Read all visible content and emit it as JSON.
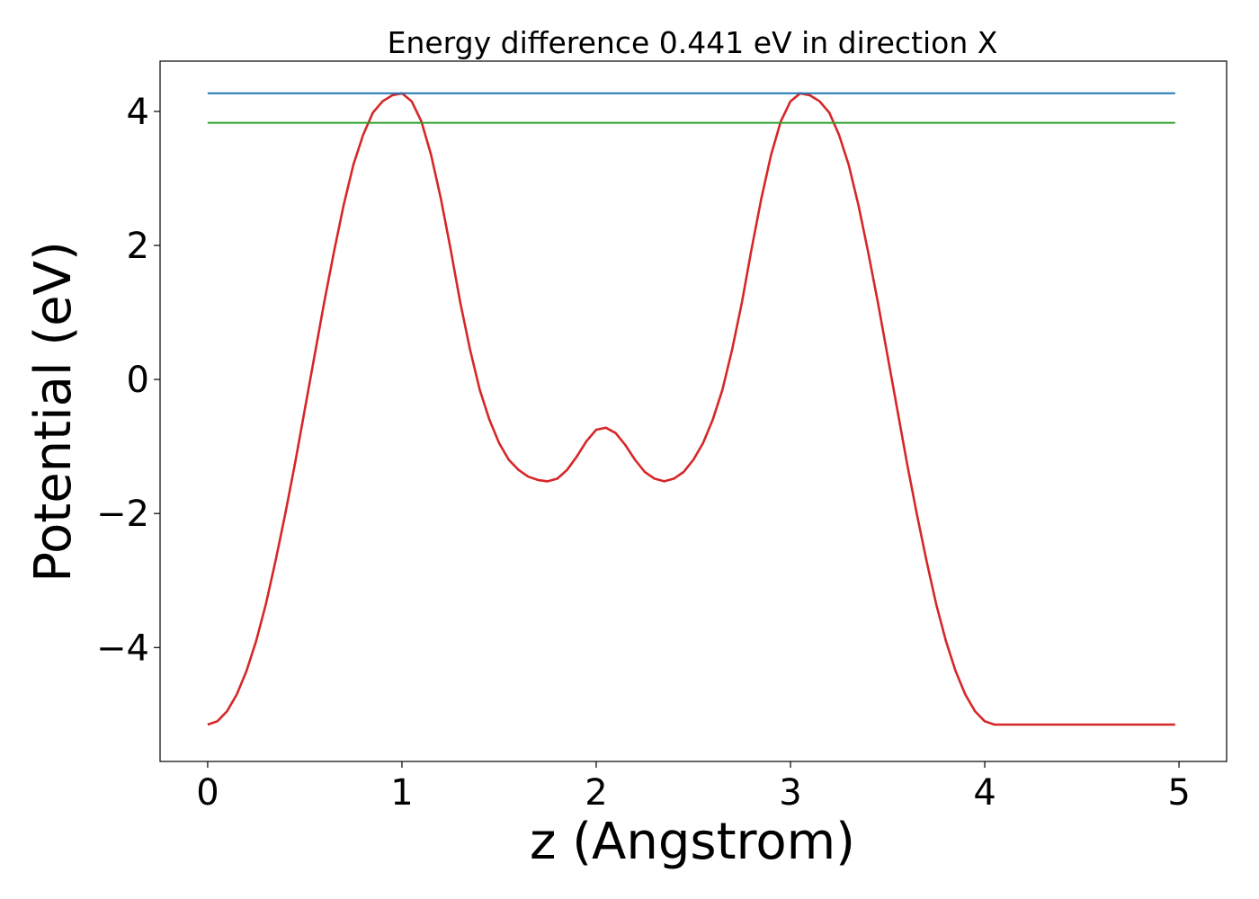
{
  "chart_data": {
    "type": "line",
    "title": "Energy difference 0.441 eV in direction X",
    "xlabel": "z (Angstrom)",
    "ylabel": "Potential (eV)",
    "xlim": [
      -0.245,
      5.245
    ],
    "ylim": [
      -5.7,
      4.75
    ],
    "xticks": [
      0,
      1,
      2,
      3,
      4,
      5
    ],
    "yticks": [
      -4,
      -2,
      0,
      2,
      4
    ],
    "xtick_labels": [
      "0",
      "1",
      "2",
      "3",
      "4",
      "5"
    ],
    "ytick_labels": [
      "−4",
      "−2",
      "0",
      "2",
      "4"
    ],
    "grid": false,
    "legend": "none",
    "series": [
      {
        "color": "#d62728",
        "x": [
          0.0,
          0.05,
          0.1,
          0.15,
          0.2,
          0.25,
          0.3,
          0.35,
          0.4,
          0.45,
          0.5,
          0.55,
          0.6,
          0.65,
          0.7,
          0.75,
          0.8,
          0.85,
          0.9,
          0.95,
          1.0,
          1.05,
          1.1,
          1.15,
          1.2,
          1.25,
          1.3,
          1.35,
          1.4,
          1.45,
          1.5,
          1.55,
          1.6,
          1.65,
          1.7,
          1.75,
          1.8,
          1.85,
          1.9,
          1.95,
          2.0,
          2.05,
          2.1,
          2.15,
          2.2,
          2.25,
          2.3,
          2.35,
          2.4,
          2.45,
          2.5,
          2.55,
          2.6,
          2.65,
          2.7,
          2.75,
          2.8,
          2.85,
          2.9,
          2.95,
          3.0,
          3.05,
          3.1,
          3.15,
          3.2,
          3.25,
          3.3,
          3.35,
          3.4,
          3.45,
          3.5,
          3.55,
          3.6,
          3.65,
          3.7,
          3.75,
          3.8,
          3.85,
          3.9,
          3.95,
          4.0,
          4.05,
          4.1,
          4.15,
          4.2,
          4.25,
          4.3,
          4.35,
          4.4,
          4.45,
          4.5,
          4.55,
          4.6,
          4.65,
          4.7,
          4.75,
          4.8,
          4.85,
          4.9,
          4.95,
          4.98
        ],
        "y": [
          -5.15,
          -5.1,
          -4.95,
          -4.7,
          -4.35,
          -3.9,
          -3.35,
          -2.7,
          -2.0,
          -1.25,
          -0.45,
          0.35,
          1.15,
          1.9,
          2.6,
          3.2,
          3.65,
          3.98,
          4.15,
          4.24,
          4.27,
          4.15,
          3.85,
          3.35,
          2.7,
          1.95,
          1.15,
          0.45,
          -0.15,
          -0.6,
          -0.95,
          -1.2,
          -1.35,
          -1.45,
          -1.5,
          -1.52,
          -1.48,
          -1.35,
          -1.15,
          -0.92,
          -0.75,
          -0.72,
          -0.8,
          -0.98,
          -1.2,
          -1.38,
          -1.48,
          -1.52,
          -1.48,
          -1.38,
          -1.2,
          -0.95,
          -0.6,
          -0.15,
          0.45,
          1.15,
          1.95,
          2.7,
          3.35,
          3.85,
          4.15,
          4.27,
          4.24,
          4.15,
          3.98,
          3.65,
          3.2,
          2.6,
          1.9,
          1.15,
          0.35,
          -0.45,
          -1.25,
          -2.0,
          -2.7,
          -3.35,
          -3.9,
          -4.35,
          -4.7,
          -4.95,
          -5.1,
          -5.15,
          -5.15,
          -5.15,
          -5.15,
          -5.15,
          -5.15,
          -5.15,
          -5.15,
          -5.15,
          -5.15,
          -5.15,
          -5.15,
          -5.15,
          -5.15,
          -5.15,
          -5.15,
          -5.15,
          -5.15,
          -5.15,
          -5.15
        ]
      },
      {
        "color": "#1f77b4",
        "x": [
          0.0,
          4.98
        ],
        "y": [
          4.27,
          4.27
        ]
      },
      {
        "color": "#2ca02c",
        "x": [
          0.0,
          4.98
        ],
        "y": [
          3.83,
          3.83
        ]
      }
    ]
  }
}
